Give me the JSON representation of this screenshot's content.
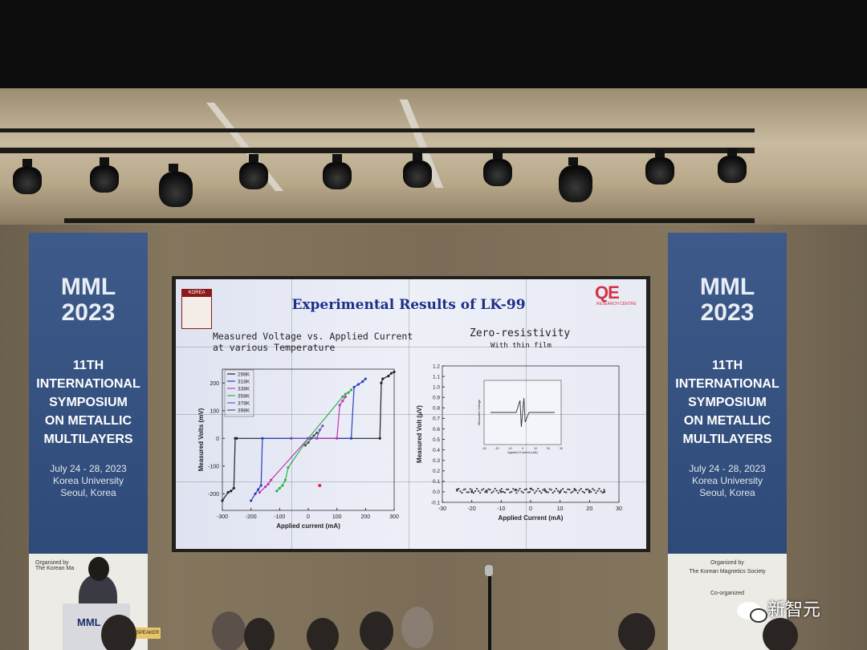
{
  "banner_left": {
    "logo_line1": "MML",
    "logo_line2": "2023",
    "title_lines": [
      "11TH",
      "INTERNATIONAL",
      "SYMPOSIUM",
      "ON METALLIC",
      "MULTILAYERS"
    ],
    "date": "July 24 - 28, 2023",
    "venue": "Korea University",
    "city": "Seoul, Korea",
    "org_label": "Organized by",
    "org_name": "The Korean Ma"
  },
  "banner_right": {
    "logo_line1": "MML",
    "logo_line2": "2023",
    "title_lines": [
      "11TH",
      "INTERNATIONAL",
      "SYMPOSIUM",
      "ON METALLIC",
      "MULTILAYERS"
    ],
    "date": "July 24 - 28, 2023",
    "venue": "Korea University",
    "city": "Seoul, Korea",
    "org_label": "Organized by",
    "org_name": "The Korean Magnetics Society",
    "coorg_label": "Co-organized"
  },
  "podium": {
    "sign": "MML",
    "speaker_tag": "SPEAKER"
  },
  "slide": {
    "title": "Experimental Results of LK-99",
    "university_logo": "KOREA",
    "qe_logo": "QE",
    "qe_subtitle": "RESEARCH CENTRE",
    "left_heading_line1": "Measured Voltage vs. Applied Current",
    "left_heading_line2": "at various Temperature",
    "right_heading": "Zero-resistivity",
    "right_subheading": "With thin film"
  },
  "chart_data": [
    {
      "type": "scatter",
      "xlabel": "Applied current (mA)",
      "ylabel": "Measured Volts (mV)",
      "xlim": [
        -300,
        300
      ],
      "ylim": [
        -260,
        250
      ],
      "xticks": [
        -300,
        -200,
        -100,
        0,
        100,
        200,
        300
      ],
      "yticks": [
        -200,
        -100,
        0,
        100,
        200
      ],
      "legend_position": "top-left",
      "series": [
        {
          "name": "298K",
          "color": "#222222",
          "x": [
            -300,
            -280,
            -270,
            -260,
            -255,
            -250,
            0,
            250,
            255,
            260,
            280,
            290,
            300
          ],
          "y": [
            -225,
            -195,
            -190,
            -180,
            0,
            0,
            0,
            0,
            200,
            215,
            225,
            235,
            240
          ]
        },
        {
          "name": "318K",
          "color": "#2a3fbf",
          "x": [
            -200,
            -185,
            -175,
            -165,
            -160,
            0,
            150,
            160,
            175,
            190,
            200
          ],
          "y": [
            -225,
            -200,
            -185,
            -170,
            0,
            0,
            0,
            185,
            195,
            205,
            215
          ]
        },
        {
          "name": "338K",
          "color": "#c034b8",
          "x": [
            -170,
            -150,
            -140,
            -130,
            0,
            100,
            110,
            120,
            130
          ],
          "y": [
            -195,
            -175,
            -165,
            -150,
            0,
            0,
            120,
            135,
            150
          ]
        },
        {
          "name": "358K",
          "color": "#2bb24c",
          "x": [
            -110,
            -100,
            -90,
            -80,
            -70,
            0,
            120,
            130,
            140,
            150
          ],
          "y": [
            -190,
            -180,
            -170,
            -150,
            -105,
            0,
            150,
            160,
            165,
            175
          ]
        },
        {
          "name": "378K",
          "color": "#7a4fc0",
          "x": [
            -60,
            0,
            30,
            40,
            50
          ],
          "y": [
            0,
            0,
            0,
            30,
            45
          ]
        },
        {
          "name": "398K",
          "color": "#555555",
          "x": [
            -10,
            0,
            10,
            20,
            30
          ],
          "y": [
            -25,
            -15,
            0,
            10,
            20
          ]
        }
      ],
      "annotation_point": {
        "x": 40,
        "y": -170,
        "color": "#d83030"
      }
    },
    {
      "type": "scatter",
      "xlabel": "Applied Current (mA)",
      "ylabel": "Measured Volt (μV)",
      "xlim": [
        -30,
        30
      ],
      "ylim": [
        -0.1,
        1.2
      ],
      "xticks": [
        -30,
        -20,
        -10,
        0,
        10,
        20,
        30
      ],
      "yticks": [
        -0.1,
        0.0,
        0.1,
        0.2,
        0.3,
        0.4,
        0.5,
        0.6,
        0.7,
        0.8,
        0.9,
        1.0,
        1.1,
        1.2
      ],
      "series": [
        {
          "name": "",
          "color": "#333333",
          "x": [
            -25,
            -20,
            -15,
            -10,
            -5,
            0,
            5,
            10,
            15,
            20,
            25
          ],
          "y": [
            0.02,
            0.0,
            0.01,
            0.0,
            0.02,
            0.03,
            0.01,
            0.0,
            0.02,
            0.01,
            0.0
          ]
        }
      ],
      "inset": {
        "xlim": [
          -30,
          30
        ],
        "xticks": [
          -30,
          -20,
          -10,
          0,
          10,
          20,
          30
        ],
        "xlabel": "Applied Current (mA)",
        "ylabel": "Measured Voltage",
        "series_x": [
          -25,
          -15,
          -5,
          -2,
          -1,
          0,
          1,
          2,
          5,
          15,
          25
        ],
        "series_y": [
          0,
          0,
          0,
          0.5,
          -0.6,
          0,
          0.6,
          -0.4,
          0,
          0,
          0
        ]
      }
    }
  ],
  "watermark": {
    "text": "新智元"
  }
}
